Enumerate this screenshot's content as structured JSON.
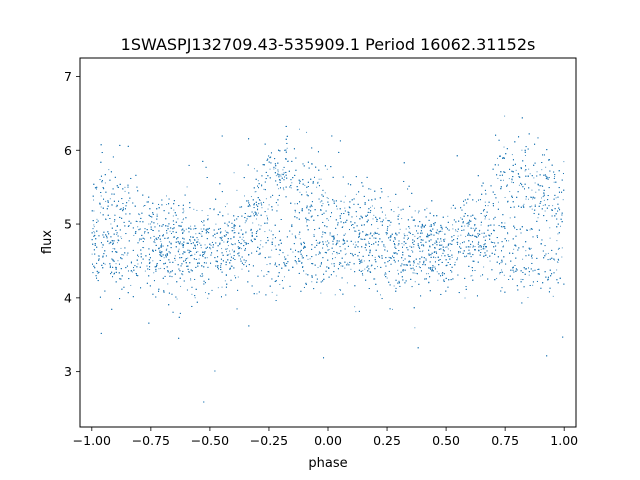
{
  "chart_data": {
    "type": "scatter",
    "title": "1SWASPJ132709.43-535909.1 Period 16062.31152s",
    "xlabel": "phase",
    "ylabel": "flux",
    "xlim": [
      -1.05,
      1.05
    ],
    "ylim": [
      2.25,
      7.25
    ],
    "x_ticks": [
      -1.0,
      -0.75,
      -0.5,
      -0.25,
      0.0,
      0.25,
      0.5,
      0.75,
      1.0
    ],
    "x_tick_labels": [
      "−1.00",
      "−0.75",
      "−0.50",
      "−0.25",
      "0.00",
      "0.25",
      "0.50",
      "0.75",
      "1.00"
    ],
    "y_ticks": [
      3,
      4,
      5,
      6,
      7
    ],
    "y_tick_labels": [
      "3",
      "4",
      "5",
      "6",
      "7"
    ],
    "grid": false,
    "marker_color": "#1f77b4",
    "series": [
      {
        "trend": {
          "note_x": "phase",
          "x": [
            -1.0,
            -0.9,
            -0.8,
            -0.7,
            -0.6,
            -0.5,
            -0.4,
            -0.35,
            -0.3,
            -0.25,
            -0.2,
            -0.15,
            -0.1,
            -0.05,
            0.0,
            0.1,
            0.2,
            0.3,
            0.4,
            0.5,
            0.6,
            0.65,
            0.7,
            0.75,
            0.8,
            0.85,
            0.9,
            0.95,
            1.0
          ],
          "upper_branch": [
            5.3,
            5.2,
            5.05,
            4.9,
            4.75,
            4.7,
            4.75,
            4.95,
            5.3,
            5.6,
            5.7,
            5.6,
            5.5,
            5.4,
            5.3,
            5.1,
            4.95,
            4.85,
            4.75,
            4.7,
            4.75,
            4.95,
            5.3,
            5.6,
            5.7,
            5.6,
            5.5,
            5.4,
            5.3
          ],
          "lower_branch": [
            4.6,
            4.55,
            4.5,
            4.5,
            4.55,
            4.65,
            4.7,
            4.7,
            4.65,
            4.6,
            4.6,
            4.6,
            4.6,
            4.6,
            4.6,
            4.55,
            4.5,
            4.5,
            4.55,
            4.65,
            4.7,
            4.7,
            4.65,
            4.6,
            4.6,
            4.6,
            4.6,
            4.6,
            4.6
          ]
        },
        "points_shown": 9000
      }
    ]
  }
}
